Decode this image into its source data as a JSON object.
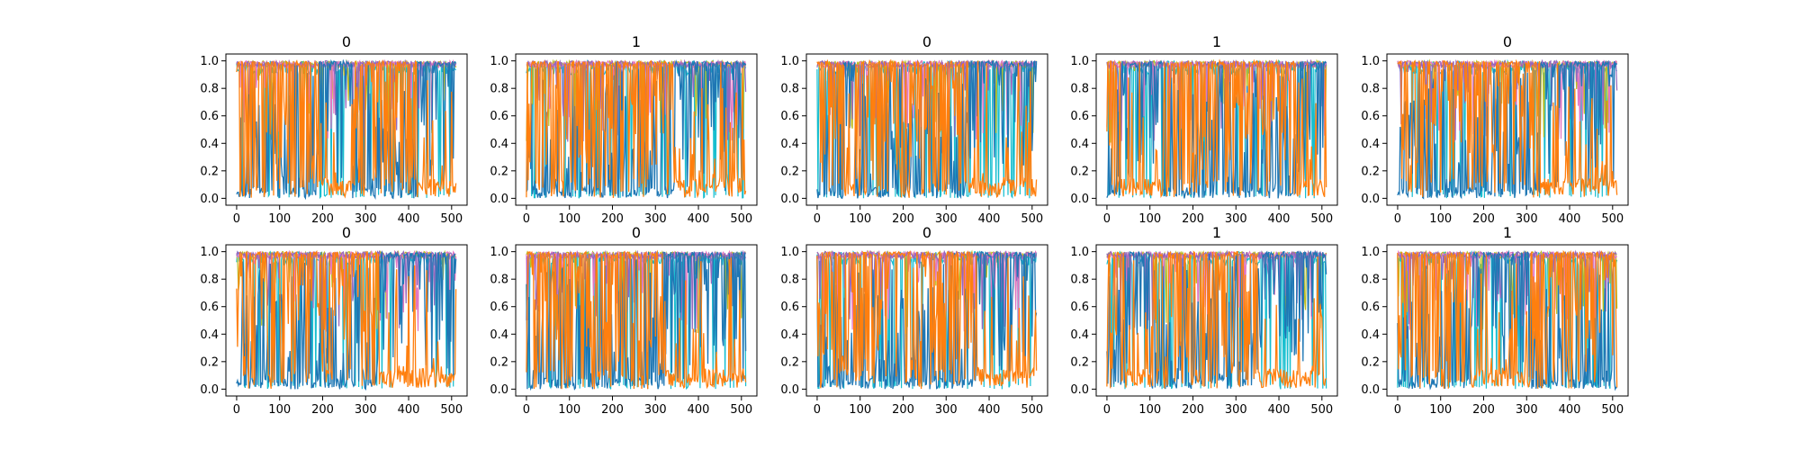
{
  "colors": {
    "series_blue": "#1f77b4",
    "series_orange": "#ff7f0e",
    "accent_cyan": "#17becf",
    "accent_green": "#bcbd22",
    "accent_pink": "#e377c2",
    "accent_purple": "#9467bd",
    "axis": "#000000"
  },
  "chart_data": [
    {
      "type": "line",
      "title": "0",
      "x_range": [
        0,
        511
      ],
      "xlim": [
        -25,
        536
      ],
      "ylim": [
        -0.05,
        1.05
      ],
      "xticks": [
        0,
        100,
        200,
        300,
        400,
        500
      ],
      "yticks": [
        0.0,
        0.2,
        0.4,
        0.6,
        0.8,
        1.0
      ],
      "grid": false,
      "orange_high_segments": [
        [
          0,
          190
        ],
        [
          270,
          420
        ]
      ]
    },
    {
      "type": "line",
      "title": "1",
      "x_range": [
        0,
        511
      ],
      "xlim": [
        -25,
        536
      ],
      "ylim": [
        -0.05,
        1.05
      ],
      "xticks": [
        0,
        100,
        200,
        300,
        400,
        500
      ],
      "yticks": [
        0.0,
        0.2,
        0.4,
        0.6,
        0.8,
        1.0
      ],
      "grid": false,
      "orange_high_segments": [
        [
          0,
          340
        ]
      ]
    },
    {
      "type": "line",
      "title": "0",
      "x_range": [
        0,
        511
      ],
      "xlim": [
        -25,
        536
      ],
      "ylim": [
        -0.05,
        1.05
      ],
      "xticks": [
        0,
        100,
        200,
        300,
        400,
        500
      ],
      "yticks": [
        0.0,
        0.2,
        0.4,
        0.6,
        0.8,
        1.0
      ],
      "grid": false,
      "orange_high_segments": [
        [
          0,
          60
        ],
        [
          90,
          350
        ]
      ]
    },
    {
      "type": "line",
      "title": "1",
      "x_range": [
        0,
        511
      ],
      "xlim": [
        -25,
        536
      ],
      "ylim": [
        -0.05,
        1.05
      ],
      "xticks": [
        0,
        100,
        200,
        300,
        400,
        500
      ],
      "yticks": [
        0.0,
        0.2,
        0.4,
        0.6,
        0.8,
        1.0
      ],
      "grid": false,
      "orange_high_segments": [
        [
          0,
          30
        ],
        [
          130,
          440
        ]
      ]
    },
    {
      "type": "line",
      "title": "0",
      "x_range": [
        0,
        511
      ],
      "xlim": [
        -25,
        536
      ],
      "ylim": [
        -0.05,
        1.05
      ],
      "xticks": [
        0,
        100,
        200,
        300,
        400,
        500
      ],
      "yticks": [
        0.0,
        0.2,
        0.4,
        0.6,
        0.8,
        1.0
      ],
      "grid": false,
      "orange_high_segments": [
        [
          0,
          330
        ]
      ]
    },
    {
      "type": "line",
      "title": "0",
      "x_range": [
        0,
        511
      ],
      "xlim": [
        -25,
        536
      ],
      "ylim": [
        -0.05,
        1.05
      ],
      "xticks": [
        0,
        100,
        200,
        300,
        400,
        500
      ],
      "yticks": [
        0.0,
        0.2,
        0.4,
        0.6,
        0.8,
        1.0
      ],
      "grid": false,
      "orange_high_segments": [
        [
          0,
          330
        ]
      ]
    },
    {
      "type": "line",
      "title": "0",
      "x_range": [
        0,
        511
      ],
      "xlim": [
        -25,
        536
      ],
      "ylim": [
        -0.05,
        1.05
      ],
      "xticks": [
        0,
        100,
        200,
        300,
        400,
        500
      ],
      "yticks": [
        0.0,
        0.2,
        0.4,
        0.6,
        0.8,
        1.0
      ],
      "grid": false,
      "orange_high_segments": [
        [
          0,
          320
        ]
      ]
    },
    {
      "type": "line",
      "title": "0",
      "x_range": [
        0,
        511
      ],
      "xlim": [
        -25,
        536
      ],
      "ylim": [
        -0.05,
        1.05
      ],
      "xticks": [
        0,
        100,
        200,
        300,
        400,
        500
      ],
      "yticks": [
        0.0,
        0.2,
        0.4,
        0.6,
        0.8,
        1.0
      ],
      "grid": false,
      "orange_high_segments": [
        [
          0,
          370
        ]
      ]
    },
    {
      "type": "line",
      "title": "1",
      "x_range": [
        0,
        511
      ],
      "xlim": [
        -25,
        536
      ],
      "ylim": [
        -0.05,
        1.05
      ],
      "xticks": [
        0,
        100,
        200,
        300,
        400,
        500
      ],
      "yticks": [
        0.0,
        0.2,
        0.4,
        0.6,
        0.8,
        1.0
      ],
      "grid": false,
      "orange_high_segments": [
        [
          0,
          40
        ],
        [
          100,
          350
        ]
      ]
    },
    {
      "type": "line",
      "title": "1",
      "x_range": [
        0,
        511
      ],
      "xlim": [
        -25,
        536
      ],
      "ylim": [
        -0.05,
        1.05
      ],
      "xticks": [
        0,
        100,
        200,
        300,
        400,
        500
      ],
      "yticks": [
        0.0,
        0.2,
        0.4,
        0.6,
        0.8,
        1.0
      ],
      "grid": false,
      "orange_high_segments": [
        [
          0,
          170
        ],
        [
          310,
          511
        ]
      ]
    }
  ]
}
